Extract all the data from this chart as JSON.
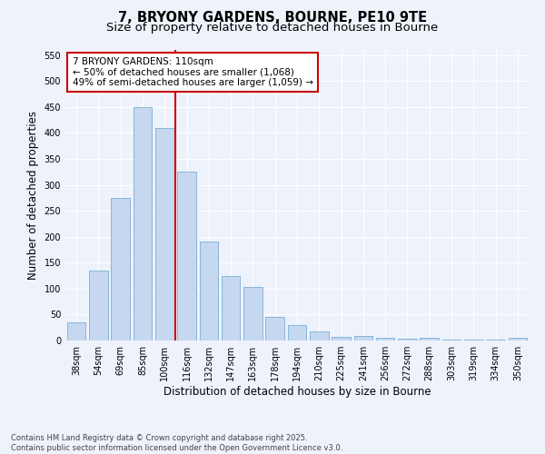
{
  "title_line1": "7, BRYONY GARDENS, BOURNE, PE10 9TE",
  "title_line2": "Size of property relative to detached houses in Bourne",
  "xlabel": "Distribution of detached houses by size in Bourne",
  "ylabel": "Number of detached properties",
  "bar_labels": [
    "38sqm",
    "54sqm",
    "69sqm",
    "85sqm",
    "100sqm",
    "116sqm",
    "132sqm",
    "147sqm",
    "163sqm",
    "178sqm",
    "194sqm",
    "210sqm",
    "225sqm",
    "241sqm",
    "256sqm",
    "272sqm",
    "288sqm",
    "303sqm",
    "319sqm",
    "334sqm",
    "350sqm"
  ],
  "bar_values": [
    35,
    135,
    275,
    450,
    410,
    325,
    190,
    125,
    103,
    45,
    30,
    18,
    7,
    9,
    5,
    4,
    5,
    2,
    2,
    2,
    6
  ],
  "bar_color": "#c5d8f0",
  "bar_edge_color": "#7bafd4",
  "vline_x": 4.5,
  "vline_color": "#cc0000",
  "annotation_text": "7 BRYONY GARDENS: 110sqm\n← 50% of detached houses are smaller (1,068)\n49% of semi-detached houses are larger (1,059) →",
  "annotation_box_color": "#ffffff",
  "annotation_box_edge_color": "#cc0000",
  "ylim": [
    0,
    560
  ],
  "yticks": [
    0,
    50,
    100,
    150,
    200,
    250,
    300,
    350,
    400,
    450,
    500,
    550
  ],
  "bg_color": "#eef2fb",
  "grid_color": "#ffffff",
  "footer": "Contains HM Land Registry data © Crown copyright and database right 2025.\nContains public sector information licensed under the Open Government Licence v3.0.",
  "title_fontsize": 10.5,
  "subtitle_fontsize": 9.5,
  "axis_label_fontsize": 8.5,
  "tick_fontsize": 7,
  "annotation_fontsize": 7.5,
  "footer_fontsize": 6
}
